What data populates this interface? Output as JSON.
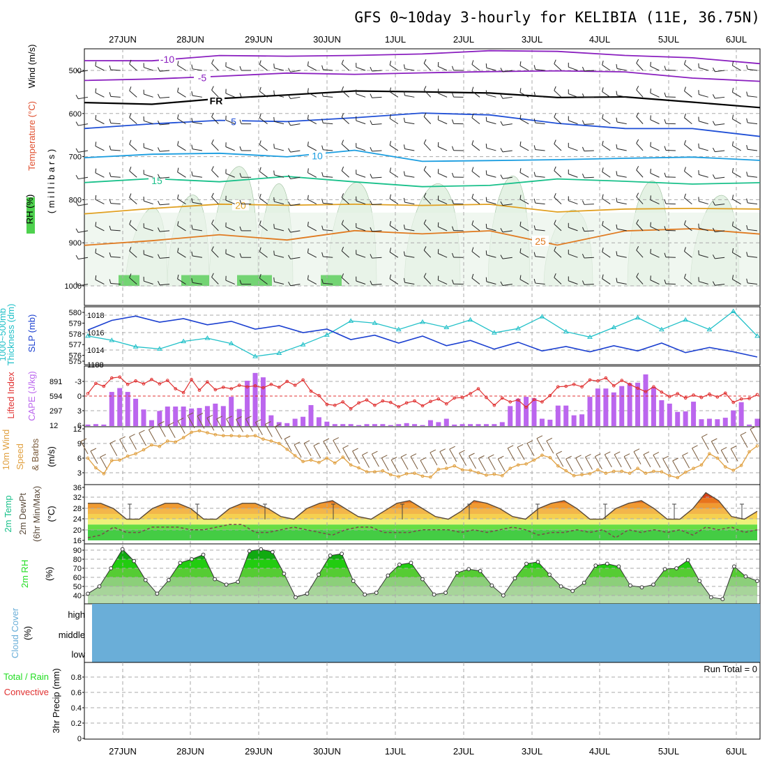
{
  "title": "GFS 0~10day 3-hourly for KELIBIA (11E, 36.75N)",
  "days": [
    "27JUN",
    "28JUN",
    "29JUN",
    "30JUN",
    "1JUL",
    "2JUL",
    "3JUL",
    "4JUL",
    "5JUL",
    "6JUL"
  ],
  "colors": {
    "purple": "#8a1fbf",
    "black": "#000000",
    "blue": "#1f4fd6",
    "lightblue": "#1a9de0",
    "teal": "#18c08a",
    "gold": "#e0a020",
    "orange": "#e07a20",
    "cape": "#bb66ee",
    "li": "#e03030",
    "thick": "#20c0c8",
    "slp": "#1a3fd0",
    "wind10": "#e0a040",
    "rhfill": "#22dd22",
    "cloud": "#6aaed8"
  },
  "panels": {
    "upper": {
      "labels": [
        "RH (%)",
        "Temperature (°C)",
        "Wind (m/s)",
        "( m i l l i b a r s )"
      ],
      "yticks": [
        500,
        600,
        700,
        800,
        900,
        1000
      ],
      "isotherms": [
        {
          "label": "-10",
          "p": [
            482,
            475,
            470,
            468,
            470,
            462,
            458,
            460,
            470,
            474,
            480
          ]
        },
        {
          "label": "-5",
          "p": [
            525,
            522,
            515,
            510,
            505,
            502,
            498,
            500,
            508,
            515,
            525
          ]
        },
        {
          "label": "FR",
          "p": [
            575,
            578,
            570,
            560,
            552,
            545,
            548,
            558,
            565,
            575,
            585
          ]
        },
        {
          "label": "5",
          "p": [
            630,
            625,
            620,
            615,
            605,
            600,
            608,
            625,
            630,
            635,
            650
          ]
        },
        {
          "label": "10",
          "p": [
            700,
            690,
            695,
            705,
            690,
            710,
            705,
            712,
            700,
            705,
            705
          ]
        },
        {
          "label": "15",
          "p": [
            765,
            755,
            760,
            750,
            755,
            765,
            762,
            755,
            760,
            768,
            765
          ]
        },
        {
          "label": "20",
          "p": [
            830,
            825,
            815,
            810,
            815,
            810,
            815,
            830,
            818,
            825,
            820
          ]
        },
        {
          "label": "25",
          "p": [
            910,
            900,
            880,
            890,
            870,
            880,
            870,
            905,
            870,
            870,
            880
          ]
        }
      ],
      "contour_labels": [
        "-10",
        "-5",
        "FR",
        "5",
        "10",
        "15",
        "20",
        "25"
      ]
    },
    "thick": {
      "labels": [
        "Thickness (dm)",
        "1000~500mb",
        "SLP (mb)"
      ],
      "left_ticks": [
        "580",
        "579",
        "578",
        "577",
        "576",
        "575"
      ],
      "right_ticks": [
        "1018",
        "1016",
        "1014",
        "1188"
      ],
      "thickness": [
        577.8,
        577.4,
        576.8,
        576.6,
        577.3,
        577.6,
        577.1,
        575.9,
        576.2,
        577.0,
        577.9,
        579.2,
        579.0,
        578.4,
        579.1,
        578.6,
        579.3,
        578.1,
        578.5,
        579.6,
        578.2,
        577.7,
        578.6,
        579.5,
        578.4,
        579.3,
        578.4,
        580.1,
        577.8
      ],
      "slp": [
        1016.3,
        1017.4,
        1017.9,
        1017.2,
        1017.6,
        1016.9,
        1017.3,
        1016.4,
        1016.8,
        1016.0,
        1016.4,
        1015.2,
        1015.7,
        1014.8,
        1015.6,
        1014.5,
        1015.1,
        1014.1,
        1014.9,
        1013.9,
        1014.4,
        1013.8,
        1014.5,
        1013.9,
        1014.8,
        1013.7,
        1014.3,
        1013.8,
        1013.2
      ]
    },
    "cape": {
      "labels": [
        "Lifted Index",
        "CAPE (J/kg)"
      ],
      "left_ticks": [
        "-3",
        "0",
        "3",
        "6"
      ],
      "right_ticks": [
        "891",
        "594",
        "297",
        "12"
      ],
      "cape": [
        30,
        40,
        30,
        700,
        780,
        700,
        560,
        340,
        120,
        310,
        400,
        400,
        400,
        360,
        370,
        410,
        460,
        410,
        600,
        350,
        930,
        1090,
        1000,
        220,
        80,
        60,
        150,
        190,
        430,
        180,
        90,
        40,
        40,
        40,
        20,
        40,
        40,
        40,
        20,
        40,
        60,
        40,
        20,
        120,
        80,
        150,
        30,
        40,
        40,
        40,
        40,
        40,
        80,
        410,
        560,
        600,
        570,
        150,
        130,
        420,
        420,
        220,
        240,
        600,
        770,
        770,
        690,
        820,
        880,
        890,
        1060,
        800,
        530,
        460,
        290,
        300,
        500,
        140,
        150,
        140,
        170,
        320,
        490,
        30,
        150
      ],
      "li": [
        -0.5,
        -2.6,
        -2.0,
        -3.7,
        -3.9,
        -2.4,
        -3.1,
        -2.5,
        -3.4,
        -2.5,
        -3.2,
        -1.5,
        -0.7,
        -3.4,
        -1.2,
        -2.9,
        -1.3,
        -1.8,
        -1.5,
        -2.2,
        -1.9,
        -2.1,
        -1.7,
        -2.4,
        -1.8,
        -3.0,
        -2.2,
        -3.3,
        -1.0,
        -0.1,
        1.7,
        1.9,
        1.2,
        2.6,
        1.4,
        0.8,
        1.9,
        1.0,
        1.3,
        2.2,
        1.4,
        1.0,
        2.0,
        1.1,
        0.6,
        1.6,
        0.4,
        0.3,
        -0.5,
        -1.5,
        0.3,
        1.9,
        0.4,
        1.2,
        0.8,
        2.3,
        0.7,
        1.2,
        -0.1,
        -1.9,
        -2.0,
        -2.4,
        -1.9,
        -3.3,
        -3.1,
        -3.7,
        -2.1,
        -3.2,
        -2.4,
        -1.6,
        -0.9,
        -1.9,
        -0.8,
        0.1,
        -0.5,
        0.4,
        -0.2,
        0.3,
        -0.4,
        0.2,
        -0.6,
        1.3,
        0.6,
        0.5,
        -0.3
      ]
    },
    "wind": {
      "labels": [
        "10m Wind",
        "Speed",
        "& Barbs",
        "(m/s)"
      ],
      "ticks": [
        "12",
        "9",
        "6",
        "3"
      ],
      "speed": [
        6.0,
        4.0,
        2.8,
        5.5,
        5.6,
        6.4,
        6.9,
        7.7,
        8.7,
        8.4,
        9.5,
        9.3,
        10.2,
        11.3,
        11.6,
        11.2,
        10.8,
        10.6,
        10.6,
        10.5,
        10.5,
        10.6,
        9.9,
        9.5,
        9.0,
        7.8,
        6.5,
        5.3,
        5.6,
        5.1,
        6.0,
        5.0,
        6.2,
        4.6,
        4.0,
        3.2,
        3.2,
        3.4,
        2.6,
        2.2,
        2.8,
        2.9,
        2.3,
        2.1,
        3.7,
        3.9,
        4.4,
        3.6,
        3.5,
        3.0,
        2.5,
        2.7,
        2.4,
        3.9,
        4.6,
        4.8,
        5.6,
        6.6,
        6.1,
        4.4,
        3.4,
        2.4,
        2.6,
        2.8,
        3.6,
        2.9,
        3.3,
        3.3,
        2.9,
        3.9,
        2.9,
        3.3,
        3.2,
        2.4,
        2.0,
        3.1,
        3.9,
        4.6,
        6.9,
        6.0,
        4.2,
        3.5,
        4.5,
        7.3,
        8.5
      ]
    },
    "temp": {
      "labels": [
        "2m Temp",
        "2m DewPt",
        "(6hr Min/Max)",
        "(°C)"
      ],
      "ticks": [
        "36",
        "32",
        "28",
        "24",
        "20",
        "16"
      ],
      "temp": [
        30,
        30,
        28,
        24,
        24,
        28,
        30,
        30,
        28,
        24,
        24,
        28,
        30,
        30,
        28,
        25,
        24,
        28,
        30,
        31,
        28,
        25,
        24,
        27,
        30,
        31,
        28,
        25,
        24,
        27,
        31,
        30,
        28,
        25,
        24,
        28,
        30,
        31,
        28,
        24,
        24,
        28,
        30,
        31,
        28,
        24,
        24,
        28,
        34,
        31,
        25,
        24,
        27
      ],
      "dew": [
        17,
        18,
        21,
        19,
        19,
        21,
        21,
        21,
        20,
        20,
        21,
        22,
        22,
        19,
        19,
        20,
        21,
        20,
        19,
        18,
        20,
        21,
        21,
        19,
        19,
        19,
        20,
        20,
        20,
        19,
        20,
        19,
        20,
        21,
        20,
        18,
        19,
        19,
        20,
        19,
        20,
        17,
        20,
        19,
        20,
        19,
        20,
        18,
        21,
        20,
        21,
        19,
        20
      ]
    },
    "rh": {
      "labels": [
        "2m RH",
        "(%)"
      ],
      "ticks": [
        "90",
        "80",
        "70",
        "60",
        "50",
        "40"
      ],
      "rh": [
        42,
        50,
        70,
        91,
        78,
        57,
        42,
        57,
        76,
        80,
        85,
        58,
        52,
        55,
        89,
        91,
        88,
        64,
        38,
        42,
        63,
        84,
        86,
        56,
        41,
        43,
        62,
        74,
        76,
        58,
        41,
        43,
        65,
        69,
        67,
        51,
        40,
        59,
        75,
        77,
        63,
        50,
        45,
        54,
        73,
        75,
        72,
        51,
        49,
        52,
        69,
        70,
        79,
        56,
        38,
        36,
        72,
        61,
        56
      ]
    },
    "cloud": {
      "labels": [
        "Cloud Cover",
        "(%)"
      ],
      "levels": [
        "high",
        "middle",
        "low"
      ]
    },
    "precip": {
      "labels": [
        "Total / Rain",
        "Convective",
        "3hr Precip (mm)"
      ],
      "ticks": [
        "0.8",
        "0.6",
        "0.4",
        "0.2",
        "0"
      ],
      "run_total": "Run Total = 0"
    }
  }
}
